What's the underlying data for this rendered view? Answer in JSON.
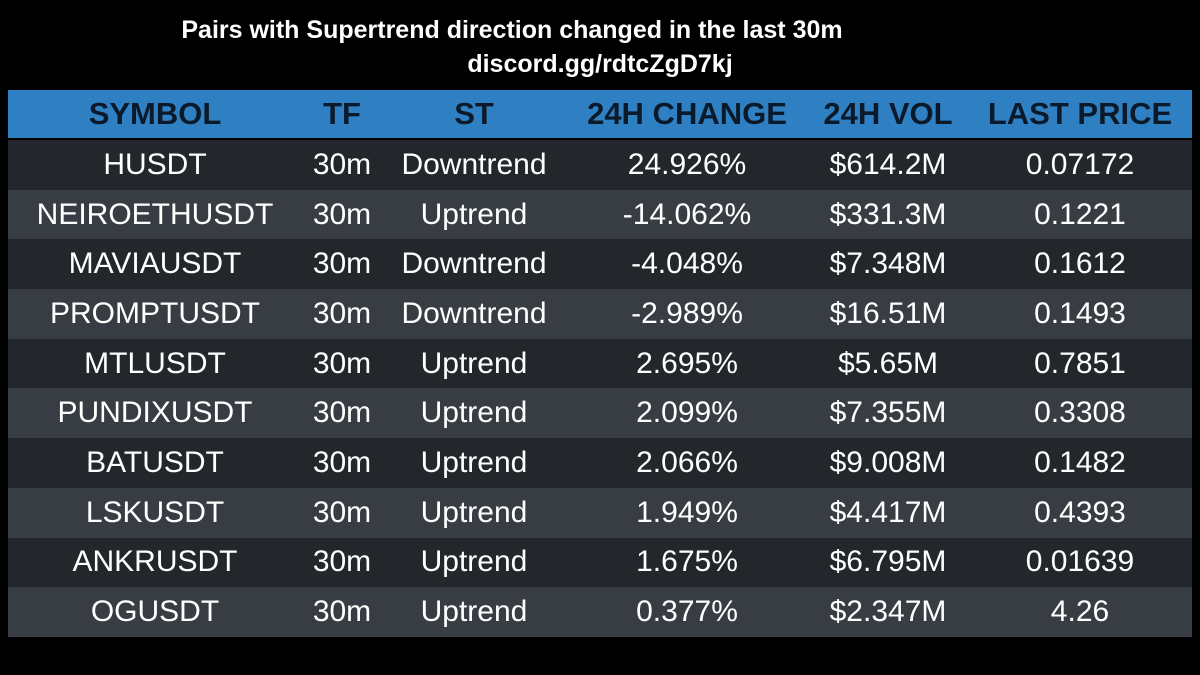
{
  "header": {
    "title": "Pairs with Supertrend direction changed in the last 30m",
    "subtitle": "discord.gg/rdtcZgD7kj"
  },
  "table": {
    "columns": [
      "SYMBOL",
      "TF",
      "ST",
      "24H CHANGE",
      "24H VOL",
      "LAST PRICE"
    ],
    "rows": [
      [
        "HUSDT",
        "30m",
        "Downtrend",
        "24.926%",
        "$614.2M",
        "0.07172"
      ],
      [
        "NEIROETHUSDT",
        "30m",
        "Uptrend",
        "-14.062%",
        "$331.3M",
        "0.1221"
      ],
      [
        "MAVIAUSDT",
        "30m",
        "Downtrend",
        "-4.048%",
        "$7.348M",
        "0.1612"
      ],
      [
        "PROMPTUSDT",
        "30m",
        "Downtrend",
        "-2.989%",
        "$16.51M",
        "0.1493"
      ],
      [
        "MTLUSDT",
        "30m",
        "Uptrend",
        "2.695%",
        "$5.65M",
        "0.7851"
      ],
      [
        "PUNDIXUSDT",
        "30m",
        "Uptrend",
        "2.099%",
        "$7.355M",
        "0.3308"
      ],
      [
        "BATUSDT",
        "30m",
        "Uptrend",
        "2.066%",
        "$9.008M",
        "0.1482"
      ],
      [
        "LSKUSDT",
        "30m",
        "Uptrend",
        "1.949%",
        "$4.417M",
        "0.4393"
      ],
      [
        "ANKRUSDT",
        "30m",
        "Uptrend",
        "1.675%",
        "$6.795M",
        "0.01639"
      ],
      [
        "OGUSDT",
        "30m",
        "Uptrend",
        "0.377%",
        "$2.347M",
        "4.26"
      ]
    ]
  }
}
